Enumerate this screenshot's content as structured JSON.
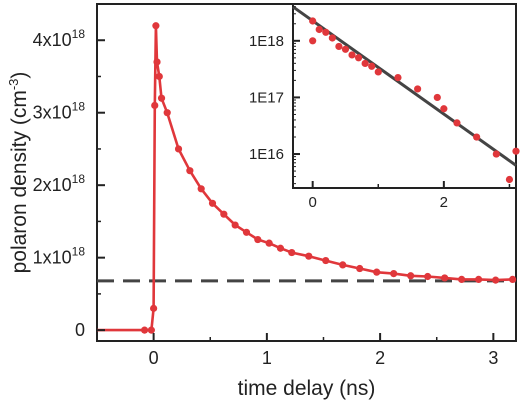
{
  "chart_data": [
    {
      "type": "line",
      "xlabel": "time delay (ns)",
      "ylabel": "polaron density (cm",
      "ylabel_superscript": "-3",
      "ylabel_suffix": ")",
      "xlim": [
        -0.5,
        3.2
      ],
      "ylim": [
        -0.15,
        4.5
      ],
      "y_unit_exponent": "18",
      "xticks": [
        0,
        1,
        2,
        3
      ],
      "xtick_labels": [
        "0",
        "1",
        "2",
        "3"
      ],
      "yticks": [
        0,
        1,
        2,
        3,
        4
      ],
      "ytick_labels": [
        {
          "text": "0",
          "sup": ""
        },
        {
          "text": "1x10",
          "sup": "18"
        },
        {
          "text": "2x10",
          "sup": "18"
        },
        {
          "text": "3x10",
          "sup": "18"
        },
        {
          "text": "4x10",
          "sup": "18"
        }
      ],
      "series": [
        {
          "color": "#e0373b",
          "x": [
            -0.5,
            -0.08,
            -0.02,
            0.0,
            0.01,
            0.02,
            0.03,
            0.05,
            0.07,
            0.12,
            0.22,
            0.32,
            0.42,
            0.52,
            0.62,
            0.72,
            0.82,
            0.92,
            1.02,
            1.12,
            1.22,
            1.37,
            1.52,
            1.67,
            1.82,
            1.97,
            2.12,
            2.27,
            2.42,
            2.57,
            2.72,
            2.87,
            3.02,
            3.17
          ],
          "y": [
            0.0,
            0.0,
            0.0,
            0.3,
            3.1,
            4.2,
            3.7,
            3.5,
            3.2,
            3.0,
            2.5,
            2.2,
            1.95,
            1.75,
            1.6,
            1.45,
            1.35,
            1.25,
            1.2,
            1.13,
            1.07,
            1.02,
            0.96,
            0.9,
            0.85,
            0.8,
            0.78,
            0.75,
            0.74,
            0.72,
            0.7,
            0.7,
            0.69,
            0.7
          ]
        }
      ],
      "baseline": {
        "y": 0.68,
        "color": "#444444",
        "style": "dashed"
      },
      "grid": false
    },
    {
      "type": "scatter",
      "log_y": true,
      "xlim": [
        -0.3,
        3.1
      ],
      "ylim_log10": [
        15.4,
        18.65
      ],
      "xticks": [
        0,
        2
      ],
      "xtick_labels": [
        "0",
        "2"
      ],
      "yticks_log10": [
        16,
        17,
        18
      ],
      "ytick_labels": [
        "1E16",
        "1E17",
        "1E18"
      ],
      "series": [
        {
          "color": "#e0373b",
          "x": [
            0.0,
            0.0,
            0.1,
            0.2,
            0.3,
            0.4,
            0.5,
            0.6,
            0.7,
            0.8,
            0.9,
            1.0,
            1.3,
            1.6,
            1.9,
            2.0,
            2.2,
            2.5,
            2.8,
            3.0,
            3.1
          ],
          "y_log10": [
            18.35,
            18.0,
            18.2,
            18.15,
            18.05,
            17.9,
            17.85,
            17.75,
            17.7,
            17.6,
            17.55,
            17.45,
            17.35,
            17.15,
            17.0,
            16.8,
            16.55,
            16.3,
            16.0,
            15.55,
            16.05
          ]
        }
      ],
      "fit_line": {
        "color": "#444444",
        "x": [
          -0.3,
          3.1
        ],
        "y_log10": [
          18.6,
          15.8
        ]
      },
      "grid": false
    }
  ]
}
